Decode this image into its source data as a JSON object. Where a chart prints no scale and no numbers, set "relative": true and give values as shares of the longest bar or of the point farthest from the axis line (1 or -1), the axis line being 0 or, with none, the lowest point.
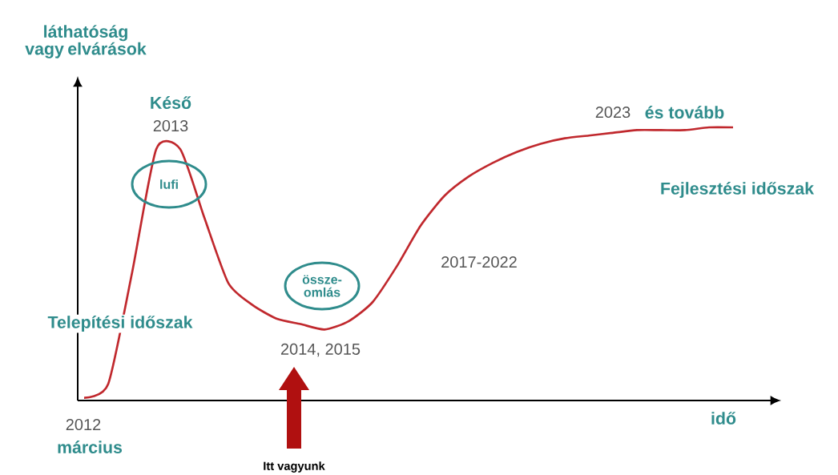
{
  "chart_data": {
    "type": "line",
    "relative": true,
    "ylabel": "láthatóság vagy elvárások",
    "xlabel": "idő",
    "categories": [
      null,
      null,
      null,
      null,
      null,
      null,
      null,
      null,
      null,
      null,
      null,
      null,
      null,
      null,
      null,
      null,
      null,
      null,
      null,
      null,
      null,
      null,
      null,
      null,
      null,
      null,
      null,
      null
    ],
    "series": [
      {
        "color": "#c0282d",
        "values": [
          0.01,
          0.06,
          0.47,
          0.92,
          0.92,
          0.67,
          0.43,
          0.35,
          0.3,
          0.28,
          0.26,
          0.29,
          0.36,
          0.49,
          0.64,
          0.75,
          0.82,
          0.87,
          0.91,
          0.94,
          0.96,
          0.97,
          0.98,
          0.99,
          0.99,
          0.99,
          1.0,
          1.0
        ]
      }
    ],
    "annotations": [
      "Késő",
      "2013",
      "lufi",
      "össze-omlás",
      "2014, 2015",
      "2017-2022",
      "2023",
      "és tovább",
      "Fejlesztési időszak",
      "Telepítési időszak",
      "2012",
      "március",
      "Itt vagyunk"
    ]
  }
}
